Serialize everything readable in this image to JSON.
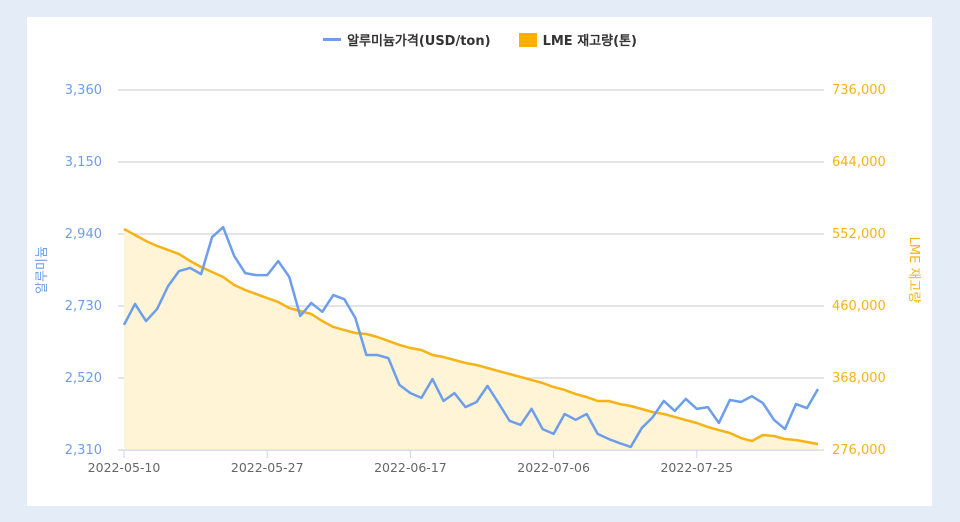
{
  "chart_data": {
    "type": "line",
    "legend_position": "top",
    "grid": true,
    "colors": {
      "price": "#6d9eeb",
      "stock": "#f5b316",
      "stock_fill": "#fff4d6"
    },
    "x_ticks": [
      {
        "label": "2022-05-10",
        "index": 0
      },
      {
        "label": "2022-05-27",
        "index": 13
      },
      {
        "label": "2022-06-17",
        "index": 26
      },
      {
        "label": "2022-07-06",
        "index": 39
      },
      {
        "label": "2022-07-25",
        "index": 52
      }
    ],
    "y_left": {
      "label": "알루미늄",
      "ylim": [
        2310,
        3360
      ],
      "ticks": [
        "2,310",
        "2,520",
        "2,730",
        "2,940",
        "3,150",
        "3,360"
      ],
      "tick_values": [
        2310,
        2520,
        2730,
        2940,
        3150,
        3360
      ]
    },
    "y_right": {
      "label": "LME 재고량",
      "ylim": [
        276000,
        736000
      ],
      "ticks": [
        "276,000",
        "368,000",
        "460,000",
        "552,000",
        "644,000",
        "736,000"
      ],
      "tick_values": [
        276000,
        368000,
        460000,
        552000,
        644000,
        736000
      ]
    },
    "series": [
      {
        "name": "알루미늄가격(USD/ton)",
        "axis": "left",
        "type": "line",
        "values": [
          2675,
          2736,
          2686,
          2721,
          2788,
          2832,
          2841,
          2823,
          2931,
          2960,
          2876,
          2826,
          2820,
          2820,
          2861,
          2815,
          2701,
          2739,
          2713,
          2762,
          2750,
          2695,
          2587,
          2587,
          2578,
          2500,
          2476,
          2462,
          2517,
          2453,
          2476,
          2435,
          2450,
          2497,
          2447,
          2395,
          2383,
          2430,
          2371,
          2357,
          2415,
          2398,
          2415,
          2357,
          2342,
          2330,
          2319,
          2374,
          2406,
          2453,
          2424,
          2459,
          2430,
          2435,
          2389,
          2456,
          2450,
          2467,
          2447,
          2398,
          2371,
          2444,
          2432,
          2488
        ]
      },
      {
        "name": "LME 재고량(톤)",
        "axis": "right",
        "type": "area",
        "values": [
          558400,
          550700,
          543100,
          536700,
          531600,
          526400,
          517500,
          509800,
          503400,
          497100,
          486800,
          480400,
          475300,
          470200,
          465100,
          457400,
          453600,
          449800,
          440800,
          433200,
          429300,
          425500,
          424200,
          420400,
          415300,
          410200,
          406300,
          403800,
          397400,
          394800,
          391000,
          387200,
          384600,
          380800,
          376900,
          373100,
          369300,
          365400,
          361600,
          356500,
          352700,
          347500,
          343700,
          338600,
          338600,
          334800,
          332200,
          328400,
          324500,
          322000,
          318200,
          314300,
          310500,
          305400,
          301500,
          297700,
          291300,
          287500,
          295200,
          293900,
          290000,
          288800,
          286200,
          283700
        ]
      }
    ]
  }
}
